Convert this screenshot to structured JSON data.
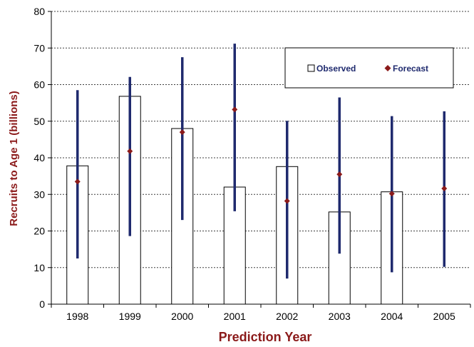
{
  "chart_data": {
    "type": "bar",
    "categories": [
      "1998",
      "1999",
      "2000",
      "2001",
      "2002",
      "2003",
      "2004",
      "2005"
    ],
    "xlabel": "Prediction Year",
    "ylabel": "Recruits to Age 1 (billions)",
    "ylim": [
      0,
      80
    ],
    "yticks": [
      0,
      10,
      20,
      30,
      40,
      50,
      60,
      70,
      80
    ],
    "grid": true,
    "legend_position": "top-right",
    "series": [
      {
        "name": "Observed",
        "kind": "bar",
        "values": [
          37.8,
          56.8,
          48.0,
          32.0,
          37.6,
          25.2,
          30.7,
          null
        ]
      },
      {
        "name": "Forecast",
        "kind": "point-with-interval",
        "values": [
          33.5,
          41.8,
          47.0,
          53.2,
          28.2,
          35.5,
          30.2,
          31.6
        ],
        "lower": [
          12.5,
          18.6,
          23.0,
          25.4,
          7.0,
          13.8,
          8.7,
          10.2
        ],
        "upper": [
          58.5,
          62.1,
          67.5,
          71.2,
          50.1,
          56.5,
          51.4,
          52.7
        ]
      }
    ],
    "colors": {
      "bar_fill": "#ffffff",
      "bar_stroke": "#000000",
      "interval": "#1f2a6e",
      "marker": "#8b1a1a",
      "axis_title": "#8b1a1a",
      "legend_text": "#1f2a6e"
    }
  }
}
